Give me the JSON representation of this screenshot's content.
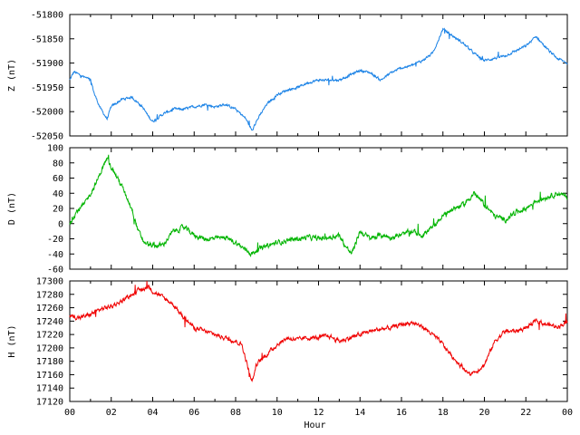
{
  "chart_data": [
    {
      "type": "line",
      "ylabel": "Z (nT)",
      "xlabel": "",
      "xlim": [
        0,
        24
      ],
      "ylim": [
        -52050,
        -51800
      ],
      "yticks": [
        -51800,
        -51850,
        -51900,
        -51950,
        -52000,
        -52050
      ],
      "color": "#1a82e6",
      "series": [
        {
          "x": [
            0,
            0.2,
            0.5,
            1.0,
            1.2,
            1.5,
            1.8,
            2.0,
            2.5,
            3.0,
            3.5,
            3.8,
            4.0,
            4.5,
            5.0,
            5.5,
            6.0,
            6.5,
            7.0,
            7.5,
            8.0,
            8.5,
            8.8,
            9.0,
            9.5,
            10.0,
            10.5,
            11.0,
            11.5,
            12.0,
            12.5,
            13.0,
            13.5,
            14.0,
            14.5,
            15.0,
            15.5,
            16.0,
            16.5,
            17.0,
            17.5,
            18.0,
            18.5,
            19.0,
            19.5,
            20.0,
            20.5,
            21.0,
            21.5,
            22.0,
            22.5,
            23.0,
            23.5,
            24.0
          ],
          "values": [
            -51935,
            -51918,
            -51925,
            -51935,
            -51965,
            -51995,
            -52015,
            -51990,
            -51975,
            -51970,
            -51990,
            -52010,
            -52020,
            -52005,
            -51995,
            -51995,
            -51990,
            -51985,
            -51990,
            -51985,
            -51995,
            -52015,
            -52040,
            -52020,
            -51985,
            -51965,
            -51955,
            -51950,
            -51940,
            -51935,
            -51935,
            -51935,
            -51925,
            -51915,
            -51920,
            -51935,
            -51920,
            -51910,
            -51905,
            -51895,
            -51880,
            -51830,
            -51845,
            -51860,
            -51880,
            -51895,
            -51890,
            -51885,
            -51875,
            -51865,
            -51845,
            -51870,
            -51890,
            -51900
          ]
        }
      ]
    },
    {
      "type": "line",
      "ylabel": "D (nT)",
      "xlabel": "",
      "xlim": [
        0,
        24
      ],
      "ylim": [
        -60,
        100
      ],
      "yticks": [
        100,
        80,
        60,
        40,
        20,
        0,
        -20,
        -40,
        -60
      ],
      "color": "#00b400",
      "series": [
        {
          "x": [
            0,
            0.3,
            0.7,
            1.0,
            1.3,
            1.6,
            1.8,
            2.0,
            2.5,
            3.0,
            3.3,
            3.6,
            4.0,
            4.5,
            5.0,
            5.5,
            6.0,
            6.5,
            7.0,
            7.5,
            8.0,
            8.5,
            8.8,
            9.0,
            9.5,
            10.0,
            10.5,
            11.0,
            11.5,
            12.0,
            12.5,
            13.0,
            13.3,
            13.6,
            14.0,
            14.5,
            15.0,
            15.5,
            16.0,
            16.5,
            17.0,
            17.5,
            18.0,
            18.5,
            19.0,
            19.5,
            20.0,
            20.5,
            21.0,
            21.5,
            22.0,
            22.5,
            23.0,
            23.5,
            24.0
          ],
          "values": [
            0,
            15,
            25,
            40,
            55,
            75,
            85,
            75,
            50,
            20,
            -10,
            -25,
            -30,
            -28,
            -10,
            -5,
            -15,
            -20,
            -20,
            -18,
            -25,
            -35,
            -40,
            -35,
            -30,
            -25,
            -22,
            -20,
            -18,
            -20,
            -18,
            -15,
            -30,
            -40,
            -10,
            -20,
            -15,
            -18,
            -15,
            -10,
            -15,
            -5,
            10,
            20,
            25,
            40,
            25,
            10,
            5,
            15,
            20,
            30,
            35,
            40,
            35
          ]
        }
      ]
    },
    {
      "type": "line",
      "ylabel": "H (nT)",
      "xlabel": "Hour",
      "xlim": [
        0,
        24
      ],
      "ylim": [
        17120,
        17300
      ],
      "yticks": [
        17300,
        17280,
        17260,
        17240,
        17220,
        17200,
        17180,
        17160,
        17140,
        17120
      ],
      "xticks": [
        "00",
        "02",
        "04",
        "06",
        "08",
        "10",
        "12",
        "14",
        "16",
        "18",
        "20",
        "22",
        "00"
      ],
      "color": "#f00000",
      "series": [
        {
          "x": [
            0,
            0.5,
            1.0,
            1.5,
            2.0,
            2.5,
            3.0,
            3.5,
            3.8,
            4.0,
            4.5,
            5.0,
            5.5,
            6.0,
            6.5,
            7.0,
            7.5,
            8.0,
            8.3,
            8.6,
            8.8,
            9.0,
            9.5,
            10.0,
            10.5,
            11.0,
            11.5,
            12.0,
            12.5,
            13.0,
            13.5,
            14.0,
            14.5,
            15.0,
            15.5,
            16.0,
            16.5,
            17.0,
            17.5,
            18.0,
            18.5,
            19.0,
            19.3,
            19.6,
            20.0,
            20.5,
            21.0,
            21.5,
            22.0,
            22.5,
            23.0,
            23.5,
            24.0
          ],
          "values": [
            17248,
            17245,
            17250,
            17258,
            17262,
            17270,
            17280,
            17288,
            17292,
            17285,
            17275,
            17265,
            17245,
            17230,
            17225,
            17220,
            17215,
            17210,
            17205,
            17170,
            17150,
            17175,
            17190,
            17205,
            17215,
            17212,
            17215,
            17215,
            17218,
            17210,
            17215,
            17220,
            17225,
            17228,
            17230,
            17235,
            17238,
            17232,
            17220,
            17205,
            17185,
            17170,
            17160,
            17165,
            17175,
            17210,
            17225,
            17225,
            17230,
            17240,
            17235,
            17232,
            17238
          ]
        }
      ]
    }
  ]
}
